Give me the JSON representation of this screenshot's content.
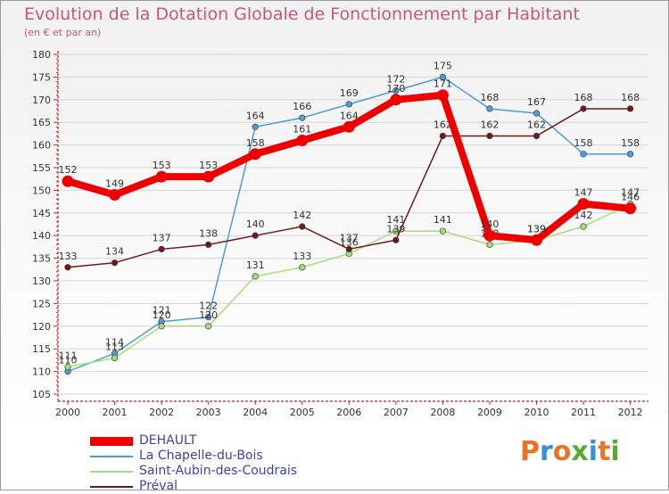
{
  "header": {
    "title": "Evolution de la Dotation Globale de Fonctionnement par Habitant",
    "subtitle": "(en € et par an)"
  },
  "brand": {
    "letters": [
      "P",
      "r",
      "o",
      "x",
      "i",
      "t",
      "i"
    ],
    "colors": [
      "#e8742a",
      "#3a8fd0",
      "#e8742a",
      "#5aa832",
      "#3a8fd0",
      "#e8742a",
      "#5aa832"
    ]
  },
  "chart_data": {
    "type": "line",
    "title": "Evolution de la Dotation Globale de Fonctionnement par Habitant",
    "ylabel": "(en € et par an)",
    "xlabel": "",
    "ylim": [
      105,
      180
    ],
    "ytick_step": 5,
    "grid": "horizontal",
    "legend_position": "bottom-left",
    "categories": [
      "2000",
      "2001",
      "2002",
      "2003",
      "2004",
      "2005",
      "2006",
      "2007",
      "2008",
      "2009",
      "2010",
      "2011",
      "2012"
    ],
    "series": [
      {
        "name": "DEHAULT",
        "color": "#ee0000",
        "style": "thick",
        "values": [
          152,
          149,
          153,
          153,
          158,
          161,
          164,
          170,
          171,
          140,
          139,
          147,
          146
        ]
      },
      {
        "name": "La Chapelle-du-Bois",
        "color": "#4f9bd3",
        "style": "thin",
        "values": [
          110,
          114,
          121,
          122,
          164,
          166,
          169,
          172,
          175,
          168,
          167,
          158,
          158
        ]
      },
      {
        "name": "Saint-Aubin-des-Coudrais",
        "color": "#a4de7a",
        "style": "thin",
        "values": [
          111,
          113,
          120,
          120,
          131,
          133,
          136,
          141,
          141,
          138,
          139,
          142,
          147
        ]
      },
      {
        "name": "Préval",
        "color": "#6e1a1a",
        "style": "thin",
        "values": [
          133,
          134,
          137,
          138,
          140,
          142,
          137,
          139,
          162,
          162,
          162,
          168,
          168
        ]
      }
    ]
  }
}
